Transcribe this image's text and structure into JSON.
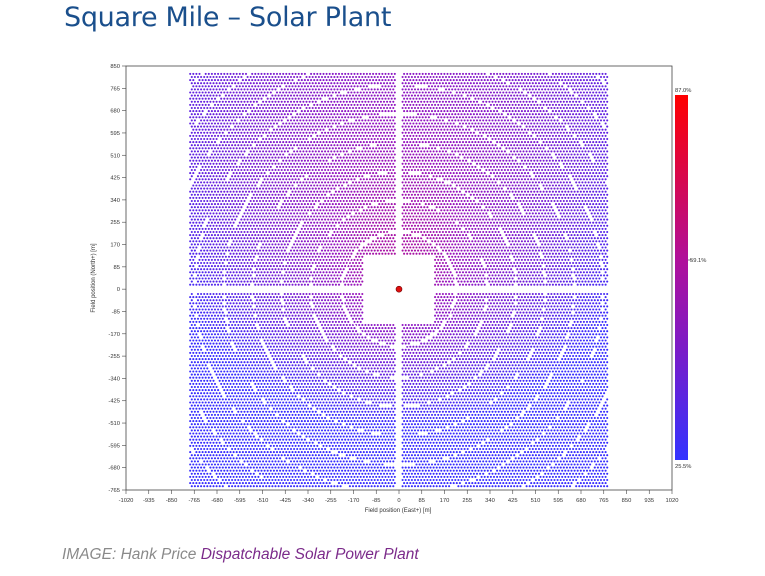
{
  "slide": {
    "title": "Square Mile – Solar Plant",
    "caption_prefix": "IMAGE: Hank Price ",
    "caption_link": "Dispatchable Solar Power Plant"
  },
  "chart_data": {
    "type": "scatter",
    "title": "",
    "xlabel": "Field position (East+) [m]",
    "ylabel": "Field position (North+) [m]",
    "xlim": [
      -1020,
      1020
    ],
    "ylim": [
      -765,
      850
    ],
    "x_ticks": [
      -1020,
      -935,
      -850,
      -765,
      -680,
      -595,
      -510,
      -425,
      -340,
      -255,
      -170,
      -85,
      0,
      85,
      170,
      255,
      340,
      425,
      510,
      595,
      680,
      765,
      850,
      935,
      1020
    ],
    "y_ticks": [
      850,
      765,
      680,
      595,
      510,
      425,
      340,
      255,
      170,
      85,
      0,
      -85,
      -170,
      -255,
      -340,
      -425,
      -510,
      -595,
      -680,
      -765
    ],
    "heliostat_field_extent": {
      "x": [
        -780,
        780
      ],
      "y": [
        -755,
        820
      ]
    },
    "tower": {
      "x": 0,
      "y": 0
    },
    "colorbar": {
      "max_label": "87.0%",
      "mid_label": "59.1%",
      "min_label": "25.5%",
      "max": 87.0,
      "mid": 59.1,
      "min": 25.5
    },
    "colors": {
      "high": "#ff0000",
      "mid": "#9b1ab5",
      "low": "#3333ff"
    }
  }
}
